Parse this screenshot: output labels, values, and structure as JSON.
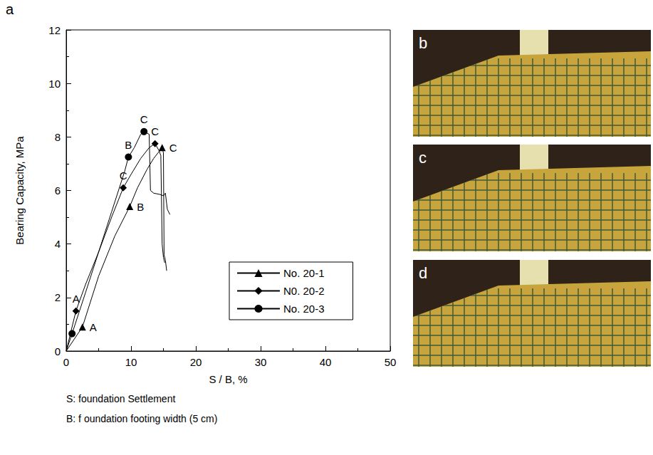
{
  "chart_data": {
    "type": "line",
    "panel_label": "a",
    "xlabel": "S / B, %",
    "ylabel": "Bearing Capacity, MPa",
    "xlim": [
      0,
      50
    ],
    "xticks": [
      0,
      10,
      20,
      30,
      40,
      50
    ],
    "ylim": [
      0,
      12
    ],
    "yticks": [
      0,
      2,
      4,
      6,
      8,
      10,
      12
    ],
    "grid": false,
    "legend": "right",
    "series": [
      {
        "name": "No. 20-1",
        "color": "#000000",
        "marker": "triangle",
        "x": [
          0,
          2.5,
          5,
          7.5,
          9.8,
          11,
          12.5,
          13.5,
          14.8,
          15.0,
          15.1,
          15.3,
          15.5
        ],
        "values": [
          0,
          0.9,
          2.8,
          4.3,
          5.4,
          6.1,
          6.8,
          7.2,
          7.6,
          7.4,
          3.6,
          3.4,
          3.0
        ],
        "marked": [
          false,
          true,
          false,
          false,
          true,
          false,
          false,
          false,
          true,
          false,
          false,
          false,
          false
        ],
        "point_labels": [
          null,
          "A",
          null,
          null,
          "B",
          null,
          null,
          null,
          "C",
          null,
          null,
          null,
          null
        ]
      },
      {
        "name": "N0. 20-2",
        "color": "#000000",
        "marker": "diamond",
        "x": [
          0,
          1.5,
          3,
          5,
          7,
          8.8,
          10,
          11.5,
          12.8,
          13.7,
          14.3,
          14.6,
          14.8,
          15.0,
          15.2
        ],
        "values": [
          0,
          1.5,
          2.5,
          3.7,
          5.0,
          6.1,
          6.6,
          7.2,
          7.6,
          7.75,
          7.5,
          7.3,
          4.0,
          3.5,
          3.3
        ],
        "marked": [
          false,
          true,
          false,
          false,
          false,
          true,
          false,
          false,
          false,
          true,
          false,
          false,
          false,
          false,
          false
        ],
        "point_labels": [
          null,
          "A",
          null,
          null,
          null,
          "C",
          null,
          null,
          null,
          "C",
          null,
          null,
          null,
          null,
          null
        ]
      },
      {
        "name": "No. 20-3",
        "color": "#000000",
        "marker": "circle",
        "x": [
          0,
          0.9,
          3,
          5,
          7,
          9,
          9.6,
          10.5,
          11.5,
          12.0,
          12.8,
          13.0,
          13.5,
          14.5,
          15.0,
          15.3,
          15.6,
          16.0
        ],
        "values": [
          0,
          0.65,
          2.2,
          3.7,
          5.2,
          6.7,
          7.25,
          7.6,
          8.1,
          8.2,
          8.1,
          6.0,
          5.9,
          5.85,
          5.8,
          5.9,
          5.3,
          5.1
        ],
        "marked": [
          false,
          true,
          false,
          false,
          false,
          false,
          true,
          false,
          false,
          true,
          false,
          false,
          false,
          false,
          false,
          false,
          false,
          false
        ],
        "point_labels": [
          null,
          null,
          null,
          null,
          null,
          null,
          "B",
          null,
          null,
          "C",
          null,
          null,
          null,
          null,
          null,
          null,
          null,
          null
        ]
      }
    ]
  },
  "notes": [
    "S: foundation Settlement",
    "B: f oundation footing width (5 cm)"
  ],
  "photos": [
    "b",
    "c",
    "d"
  ]
}
